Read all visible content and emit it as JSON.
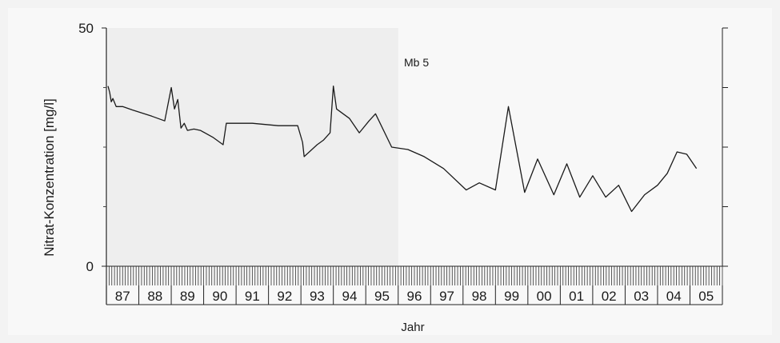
{
  "chart_data": {
    "type": "line",
    "title": "Mb 5",
    "xlabel": "Jahr",
    "ylabel": "Nitrat-Konzentration [mg/l]",
    "ylim": [
      0,
      50
    ],
    "y_tick_labels": [
      "0",
      "50"
    ],
    "y_ticks_right": [
      0,
      12.5,
      25,
      37.5,
      50
    ],
    "xlim": [
      1987.0,
      2006.0
    ],
    "x_tick_labels": [
      "87",
      "88",
      "89",
      "90",
      "91",
      "92",
      "93",
      "94",
      "95",
      "96",
      "97",
      "98",
      "99",
      "00",
      "01",
      "02",
      "03",
      "04",
      "05"
    ],
    "grid": false,
    "series": [
      {
        "color": "#1a1a1a",
        "points": [
          [
            1987.05,
            37.8
          ],
          [
            1987.1,
            36.5
          ],
          [
            1987.15,
            34.5
          ],
          [
            1987.2,
            35.2
          ],
          [
            1987.3,
            33.5
          ],
          [
            1987.5,
            33.5
          ],
          [
            1987.8,
            32.8
          ],
          [
            1988.4,
            31.5
          ],
          [
            1988.8,
            30.5
          ],
          [
            1989.0,
            37.5
          ],
          [
            1989.1,
            33.0
          ],
          [
            1989.2,
            35.0
          ],
          [
            1989.3,
            29.0
          ],
          [
            1989.4,
            30.0
          ],
          [
            1989.5,
            28.5
          ],
          [
            1989.7,
            28.8
          ],
          [
            1989.9,
            28.5
          ],
          [
            1990.3,
            27.0
          ],
          [
            1990.6,
            25.5
          ],
          [
            1990.7,
            30.0
          ],
          [
            1991.5,
            30.0
          ],
          [
            1992.3,
            29.5
          ],
          [
            1992.9,
            29.5
          ],
          [
            1993.05,
            26.0
          ],
          [
            1993.1,
            23.0
          ],
          [
            1993.5,
            25.5
          ],
          [
            1993.7,
            26.5
          ],
          [
            1993.9,
            28.0
          ],
          [
            1994.0,
            37.8
          ],
          [
            1994.1,
            33.0
          ],
          [
            1994.5,
            31.0
          ],
          [
            1994.8,
            28.0
          ],
          [
            1995.1,
            30.5
          ],
          [
            1995.3,
            32.0
          ],
          [
            1995.8,
            25.0
          ],
          [
            1996.3,
            24.5
          ],
          [
            1996.8,
            23.0
          ],
          [
            1997.4,
            20.5
          ],
          [
            1998.1,
            16.0
          ],
          [
            1998.5,
            17.5
          ],
          [
            1999.0,
            16.0
          ],
          [
            1999.4,
            33.5
          ],
          [
            1999.9,
            15.5
          ],
          [
            2000.3,
            22.5
          ],
          [
            2000.8,
            15.0
          ],
          [
            2001.2,
            21.5
          ],
          [
            2001.6,
            14.5
          ],
          [
            2002.0,
            19.0
          ],
          [
            2002.4,
            14.5
          ],
          [
            2002.8,
            17.0
          ],
          [
            2003.2,
            11.5
          ],
          [
            2003.6,
            15.0
          ],
          [
            2004.0,
            17.0
          ],
          [
            2004.3,
            19.5
          ],
          [
            2004.6,
            24.0
          ],
          [
            2004.9,
            23.5
          ],
          [
            2005.0,
            22.5
          ],
          [
            2005.2,
            20.5
          ]
        ]
      }
    ]
  }
}
